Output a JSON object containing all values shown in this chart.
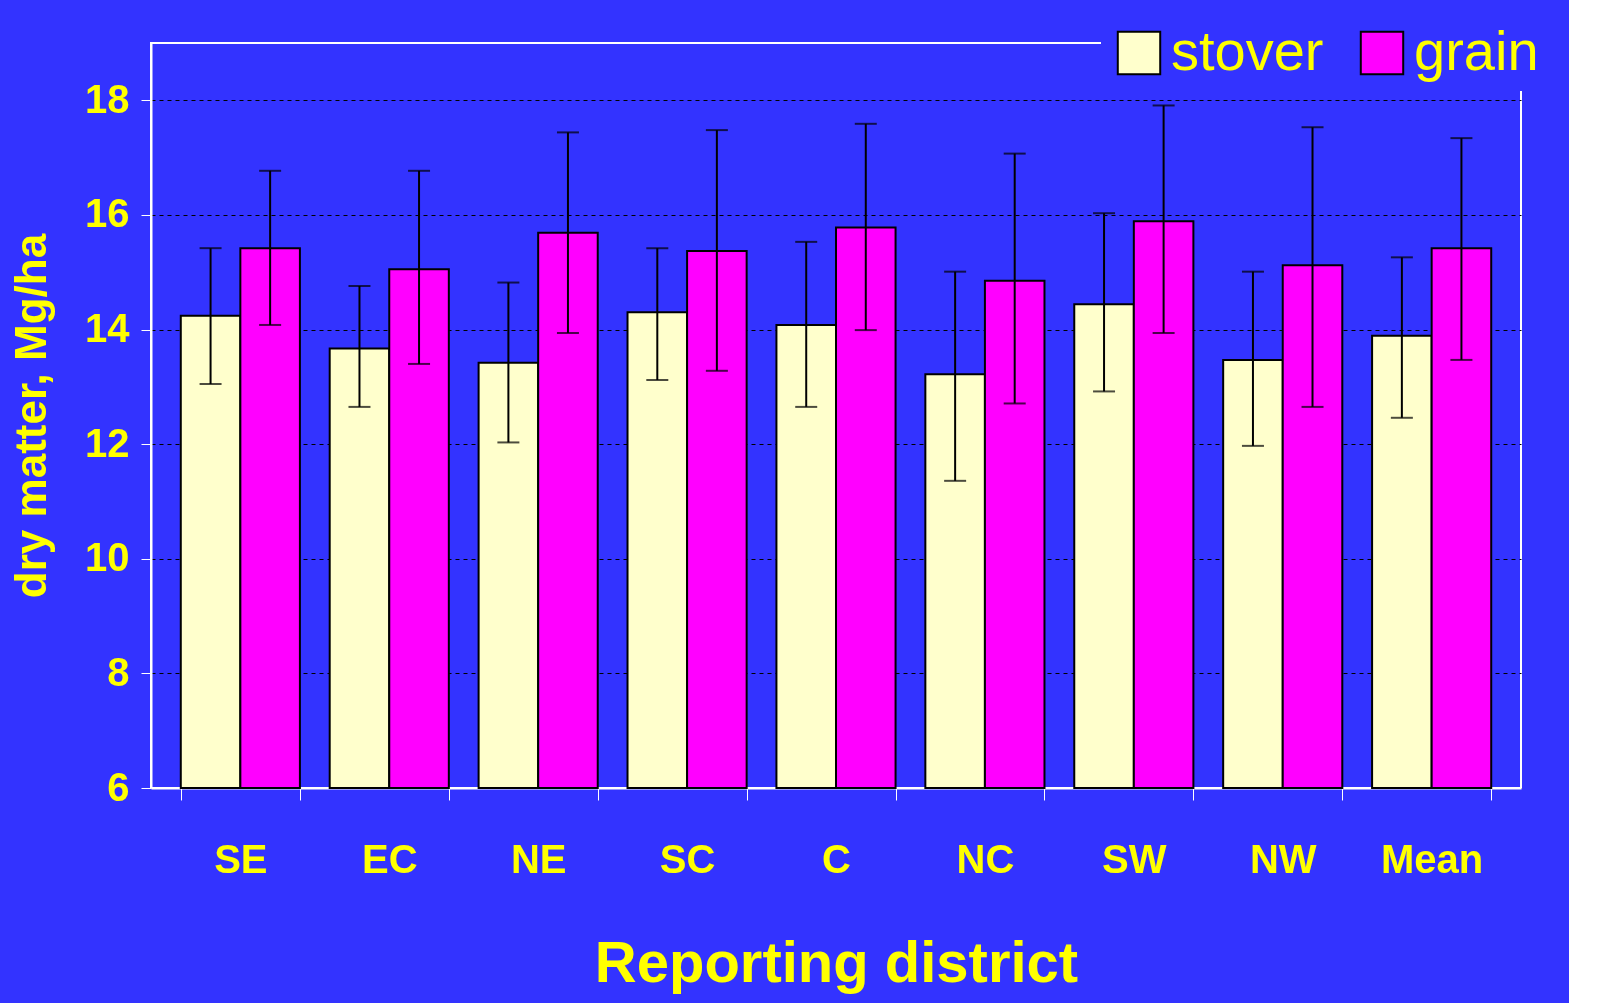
{
  "chart_data": {
    "type": "bar",
    "xlabel": "Reporting district",
    "ylabel": "dry matter, Mg/ha",
    "categories": [
      "SE",
      "EC",
      "NE",
      "SC",
      "C",
      "NC",
      "SW",
      "NW",
      "Mean"
    ],
    "series": [
      {
        "name": "stover",
        "color": "#ffffcc",
        "values": [
          14.24,
          13.67,
          13.42,
          14.3,
          14.08,
          13.22,
          14.44,
          13.47,
          13.89
        ],
        "errors": [
          [
            13.05,
            15.42
          ],
          [
            12.65,
            14.76
          ],
          [
            12.03,
            14.82
          ],
          [
            13.12,
            15.42
          ],
          [
            12.65,
            15.53
          ],
          [
            11.36,
            15.01
          ],
          [
            12.92,
            16.03
          ],
          [
            11.97,
            15.01
          ],
          [
            12.46,
            15.26
          ]
        ]
      },
      {
        "name": "grain",
        "color": "#ff00ff",
        "values": [
          15.42,
          15.05,
          15.69,
          15.37,
          15.78,
          14.85,
          15.89,
          15.12,
          15.42
        ],
        "errors": [
          [
            14.08,
            16.77
          ],
          [
            13.4,
            16.77
          ],
          [
            13.94,
            17.44
          ],
          [
            13.28,
            17.48
          ],
          [
            13.99,
            17.59
          ],
          [
            12.71,
            17.07
          ],
          [
            13.94,
            17.91
          ],
          [
            12.65,
            17.53
          ],
          [
            13.47,
            17.34
          ]
        ]
      }
    ],
    "ylim": [
      6,
      19
    ],
    "yticks": [
      6,
      8,
      10,
      12,
      14,
      16,
      18
    ],
    "grid": "y",
    "legend": "top right"
  }
}
